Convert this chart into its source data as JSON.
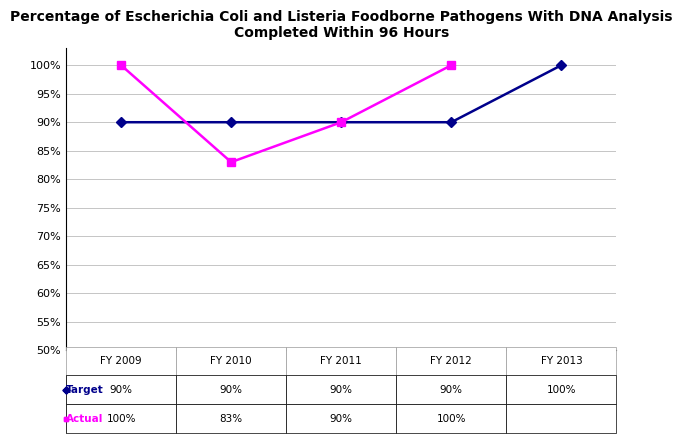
{
  "title": "Percentage of Escherichia Coli and Listeria Foodborne Pathogens With DNA Analysis\nCompleted Within 96 Hours",
  "title_fontsize": 10,
  "categories": [
    "FY 2009",
    "FY 2010",
    "FY 2011",
    "FY 2012",
    "FY 2013"
  ],
  "target_values": [
    90,
    90,
    90,
    90,
    100
  ],
  "actual_values": [
    100,
    83,
    90,
    100,
    null
  ],
  "target_color": "#00008B",
  "actual_color": "#FF00FF",
  "ylim": [
    50,
    103
  ],
  "yticks": [
    50,
    55,
    60,
    65,
    70,
    75,
    80,
    85,
    90,
    95,
    100
  ],
  "ytick_labels": [
    "50%",
    "55%",
    "60%",
    "65%",
    "70%",
    "75%",
    "80%",
    "85%",
    "90%",
    "95%",
    "100%"
  ],
  "grid_color": "#bbbbbb",
  "background_color": "#ffffff",
  "table_header_row": [
    "FY 2009",
    "FY 2010",
    "FY 2011",
    "FY 2012",
    "FY 2013"
  ],
  "table_target_row": [
    "90%",
    "90%",
    "90%",
    "90%",
    "100%"
  ],
  "table_actual_row": [
    "100%",
    "83%",
    "90%",
    "100%",
    ""
  ],
  "legend_target_label": "Target",
  "legend_actual_label": "Actual",
  "marker_target": "D",
  "marker_actual": "s"
}
